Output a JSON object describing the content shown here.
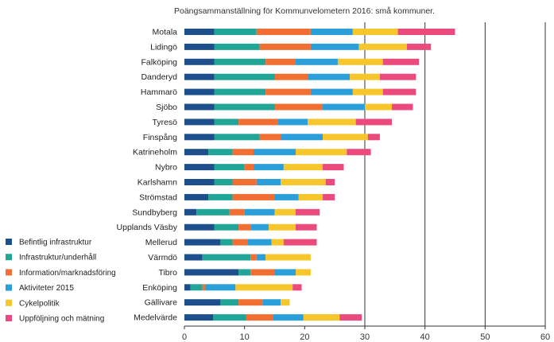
{
  "chart_data": {
    "type": "bar",
    "orientation": "horizontal",
    "stacked": true,
    "title": "Poängsammanställning för Kommunvelometern 2016: små kommuner.",
    "xlabel": "",
    "ylabel": "",
    "xlim": [
      0,
      60
    ],
    "x_ticks": [
      "0",
      "10",
      "20",
      "30",
      "40",
      "50",
      "60"
    ],
    "grid": "vertical major gridlines at 30, 40, 50, 60",
    "legend_position": "bottom-left",
    "categories": [
      "Motala",
      "Lidingö",
      "Falköping",
      "Danderyd",
      "Hammarö",
      "Sjöbo",
      "Tyresö",
      "Finspång",
      "Katrineholm",
      "Nybro",
      "Karlshamn",
      "Strömstad",
      "Sundbyberg",
      "Upplands Väsby",
      "Mellerud",
      "Värmdö",
      "Tibro",
      "Enköping",
      "Gällivare",
      "Medelvärde"
    ],
    "series": [
      {
        "name": "Befintlig infrastruktur",
        "color": "#1c4f8c",
        "values": [
          5,
          5,
          5,
          5,
          5,
          5,
          5,
          5,
          4,
          5,
          5,
          4,
          2,
          5,
          6,
          3,
          9,
          1,
          6,
          4.8
        ]
      },
      {
        "name": "Infrastruktur/underhåll",
        "color": "#21a597",
        "values": [
          7,
          7.5,
          8.5,
          10,
          8.5,
          10,
          4,
          7.5,
          4,
          5,
          3,
          4,
          5.5,
          4,
          2,
          8,
          2,
          2,
          3,
          5.5
        ]
      },
      {
        "name": "Information/marknadsföring",
        "color": "#f26f34",
        "values": [
          9,
          8.5,
          5,
          5.5,
          7.5,
          8,
          6.5,
          3.5,
          3.5,
          1.5,
          4,
          7,
          2.5,
          2,
          2.5,
          1,
          4,
          0.5,
          4,
          4.5
        ]
      },
      {
        "name": "Aktiviteter 2015",
        "color": "#2b9fd9",
        "values": [
          7,
          8,
          7,
          7,
          7,
          7,
          5,
          7,
          7,
          5,
          4,
          4,
          5,
          3,
          4,
          1.5,
          3.5,
          5,
          3,
          5
        ]
      },
      {
        "name": "Cykelpolitik",
        "color": "#f7c52c",
        "values": [
          7.5,
          8,
          7.5,
          5,
          5,
          4.5,
          8,
          7.5,
          8.5,
          6.5,
          7.5,
          4,
          3.5,
          4.5,
          2,
          7.5,
          2.5,
          9.5,
          1.5,
          6
        ]
      },
      {
        "name": "Uppföljning och mätning",
        "color": "#ea4a7c",
        "values": [
          9.5,
          4,
          6,
          6,
          5.5,
          3.5,
          6,
          2,
          4,
          3.5,
          1.5,
          2,
          4,
          3.5,
          5.5,
          0,
          0,
          1.5,
          0,
          3.7
        ]
      }
    ]
  }
}
